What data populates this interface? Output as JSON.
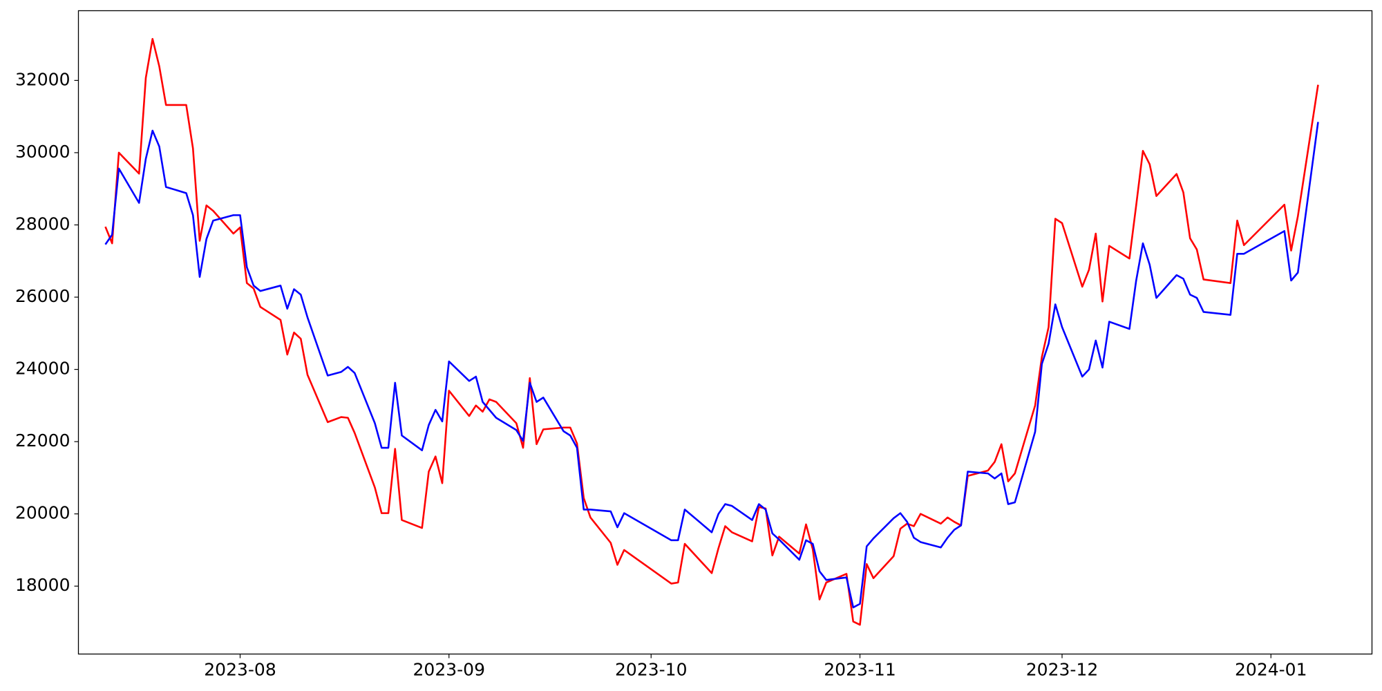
{
  "chart_data": {
    "type": "line",
    "x": [
      19550,
      19551,
      19552,
      19555,
      19556,
      19557,
      19558,
      19559,
      19562,
      19563,
      19564,
      19565,
      19566,
      19569,
      19570,
      19571,
      19572,
      19573,
      19576,
      19577,
      19578,
      19579,
      19580,
      19583,
      19584,
      19585,
      19586,
      19587,
      19590,
      19591,
      19592,
      19593,
      19594,
      19597,
      19598,
      19599,
      19600,
      19601,
      19604,
      19605,
      19606,
      19607,
      19608,
      19611,
      19612,
      19613,
      19614,
      19615,
      19618,
      19619,
      19620,
      19621,
      19622,
      19625,
      19626,
      19627,
      19634,
      19635,
      19636,
      19640,
      19641,
      19642,
      19643,
      19646,
      19647,
      19648,
      19649,
      19650,
      19653,
      19654,
      19655,
      19656,
      19657,
      19660,
      19661,
      19662,
      19663,
      19664,
      19667,
      19668,
      19669,
      19670,
      19671,
      19674,
      19675,
      19676,
      19677,
      19678,
      19681,
      19682,
      19683,
      19684,
      19685,
      19688,
      19689,
      19690,
      19691,
      19692,
      19695,
      19696,
      19697,
      19698,
      19699,
      19702,
      19703,
      19704,
      19705,
      19706,
      19709,
      19710,
      19711,
      19712,
      19713,
      19717,
      19718,
      19719,
      19725,
      19726,
      19727,
      19730
    ],
    "series": [
      {
        "color": "#ff0000",
        "values": [
          27950,
          27490,
          30000,
          29420,
          32070,
          33150,
          32390,
          31320,
          31320,
          30120,
          27560,
          28540,
          28390,
          27760,
          27930,
          26390,
          26240,
          25730,
          25370,
          24410,
          25020,
          24850,
          23850,
          22540,
          22610,
          22680,
          22660,
          22240,
          20730,
          20020,
          20020,
          21800,
          19830,
          19610,
          21170,
          21590,
          20850,
          23410,
          22710,
          23000,
          22830,
          23170,
          23100,
          22510,
          21830,
          23760,
          21930,
          22340,
          22390,
          22390,
          21950,
          20440,
          19900,
          19200,
          18590,
          19000,
          18070,
          18100,
          19170,
          18360,
          19050,
          19660,
          19490,
          19240,
          20190,
          20150,
          18850,
          19370,
          18900,
          19710,
          19020,
          17630,
          18100,
          18340,
          17020,
          16930,
          18610,
          18220,
          18830,
          19590,
          19730,
          19660,
          20000,
          19730,
          19900,
          19780,
          19680,
          21050,
          21200,
          21440,
          21930,
          20900,
          21120,
          23000,
          24340,
          25170,
          28170,
          28050,
          26290,
          26760,
          27760,
          25880,
          27420,
          27070,
          28540,
          30050,
          29680,
          28800,
          29410,
          28900,
          27630,
          27320,
          26490,
          26390,
          28120,
          27440,
          28560,
          27290,
          28240,
          31880
        ]
      },
      {
        "color": "#0000ff",
        "values": [
          27460,
          27730,
          29560,
          28610,
          29830,
          30610,
          30170,
          29050,
          28880,
          28270,
          26560,
          27610,
          28120,
          28270,
          28270,
          26830,
          26320,
          26170,
          26320,
          25680,
          26220,
          26070,
          25440,
          23830,
          23880,
          23930,
          24070,
          23900,
          22510,
          21830,
          21830,
          23630,
          22170,
          21760,
          22460,
          22880,
          22560,
          24220,
          23680,
          23800,
          23100,
          22880,
          22660,
          22320,
          22020,
          23630,
          23100,
          23220,
          22290,
          22170,
          21830,
          20120,
          20120,
          20070,
          19630,
          20020,
          19270,
          19270,
          20120,
          19490,
          20000,
          20270,
          20220,
          19830,
          20270,
          20120,
          19460,
          19290,
          18730,
          19270,
          19170,
          18410,
          18170,
          18240,
          17410,
          17510,
          19100,
          19320,
          19880,
          20020,
          19780,
          19340,
          19220,
          19070,
          19340,
          19560,
          19680,
          21170,
          21120,
          20980,
          21120,
          20270,
          20320,
          22270,
          24150,
          24710,
          25800,
          25170,
          23800,
          24000,
          24800,
          24050,
          25320,
          25120,
          26460,
          27490,
          26900,
          25980,
          26610,
          26510,
          26070,
          25980,
          25590,
          25510,
          27200,
          27200,
          27830,
          26460,
          26680,
          30850
        ]
      }
    ],
    "xlim": [
      19546,
      19738
    ],
    "xticks": [
      {
        "value": 19570,
        "label": "2023-08"
      },
      {
        "value": 19601,
        "label": "2023-09"
      },
      {
        "value": 19631,
        "label": "2023-10"
      },
      {
        "value": 19662,
        "label": "2023-11"
      },
      {
        "value": 19692,
        "label": "2023-12"
      },
      {
        "value": 19723,
        "label": "2024-01"
      }
    ],
    "ylim": [
      16120,
      33930
    ],
    "yticks": [
      18000,
      20000,
      22000,
      24000,
      26000,
      28000,
      30000,
      32000
    ]
  }
}
